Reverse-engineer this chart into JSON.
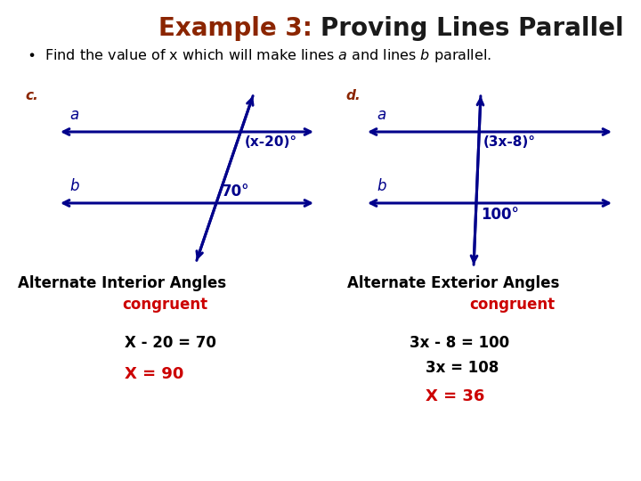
{
  "title_part1": "Example 3: ",
  "title_part2": "Proving Lines Parallel",
  "title_color1": "#8B2500",
  "title_color2": "#1a1a1a",
  "title_fontsize": 20,
  "subtitle_fontsize": 11.5,
  "label_color": "#8B2500",
  "diagram_color": "#00008B",
  "angle_label_left_upper": "(x-20)°",
  "angle_label_left_lower": "70°",
  "angle_label_right_upper": "(3x-8)°",
  "angle_label_right_lower": "100°",
  "alt_int_label": "Alternate Interior Angles",
  "alt_ext_label": "Alternate Exterior Angles",
  "congruent_label": "congruent",
  "congruent_color": "#CC0000",
  "eq1_line1": "X - 20 = 70",
  "eq1_line2": "X = 90",
  "eq2_line1": "3x - 8 = 100",
  "eq2_line2": "3x = 108",
  "eq2_line3": "X = 36",
  "eq_color_normal": "#000000",
  "eq_color_answer": "#CC0000",
  "background_color": "#FFFFFF"
}
